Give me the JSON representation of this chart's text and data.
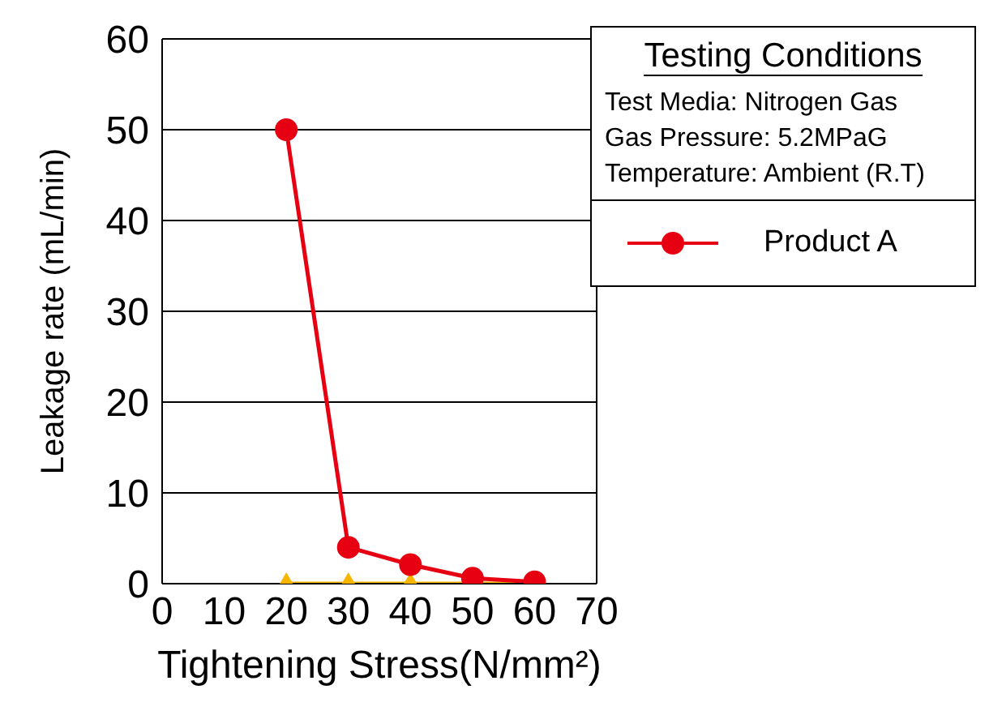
{
  "chart_data": {
    "type": "line",
    "xlabel": "Tightening Stress(N/mm²)",
    "ylabel": "Leakage rate (mL/min)",
    "legend_title": "Testing Conditions",
    "annotations": [
      "Test Media: Nitrogen Gas",
      "Gas Pressure: 5.2MPaG",
      "Temperature: Ambient (R.T)"
    ],
    "x": [
      20,
      30,
      40,
      50,
      60
    ],
    "series": [
      {
        "name": "Product A",
        "color": "#e60012",
        "marker": "circle",
        "values": [
          50,
          4,
          2.1,
          0.6,
          0.2
        ]
      },
      {
        "color": "#f7b500",
        "marker": "triangle",
        "values": [
          0,
          0,
          0,
          0,
          0
        ]
      }
    ],
    "xlim": [
      0,
      70
    ],
    "xticks": [
      0,
      10,
      20,
      30,
      40,
      50,
      60,
      70
    ],
    "ylim": [
      0,
      60
    ],
    "yticks": [
      0,
      10,
      20,
      30,
      40,
      50,
      60
    ],
    "grid": "y",
    "legend": "top right",
    "line_style": "solid"
  }
}
